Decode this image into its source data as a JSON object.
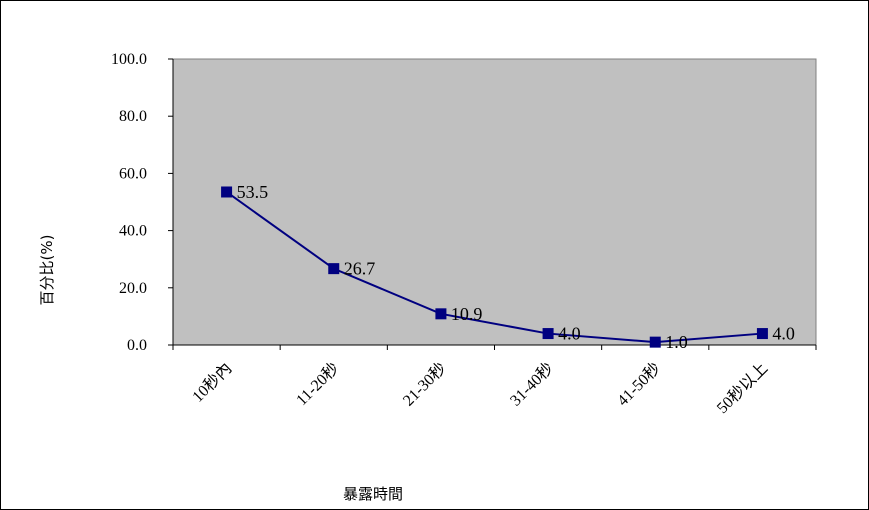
{
  "chart_data": {
    "type": "line",
    "title": "",
    "xlabel": "暴露時間",
    "ylabel": "百分比(%)",
    "categories": [
      "10秒內",
      "11-20秒",
      "21-30秒",
      "31-40秒",
      "41-50秒",
      "50秒以上"
    ],
    "series": [
      {
        "values": [
          53.5,
          26.7,
          10.9,
          4.0,
          1.0,
          4.0
        ]
      }
    ],
    "data_labels": [
      "53.5",
      "26.7",
      "10.9",
      "4.0",
      "1.0",
      "4.0"
    ],
    "ylim": [
      0,
      100
    ],
    "yticks": [
      "0.0",
      "20.0",
      "40.0",
      "60.0",
      "80.0",
      "100.0"
    ],
    "ytick_values": [
      0,
      20,
      40,
      60,
      80,
      100
    ],
    "grid": false,
    "legend": "none",
    "colors": {
      "plot_background": "#c0c0c0",
      "series_line": "#000080",
      "marker": "#000080"
    }
  }
}
